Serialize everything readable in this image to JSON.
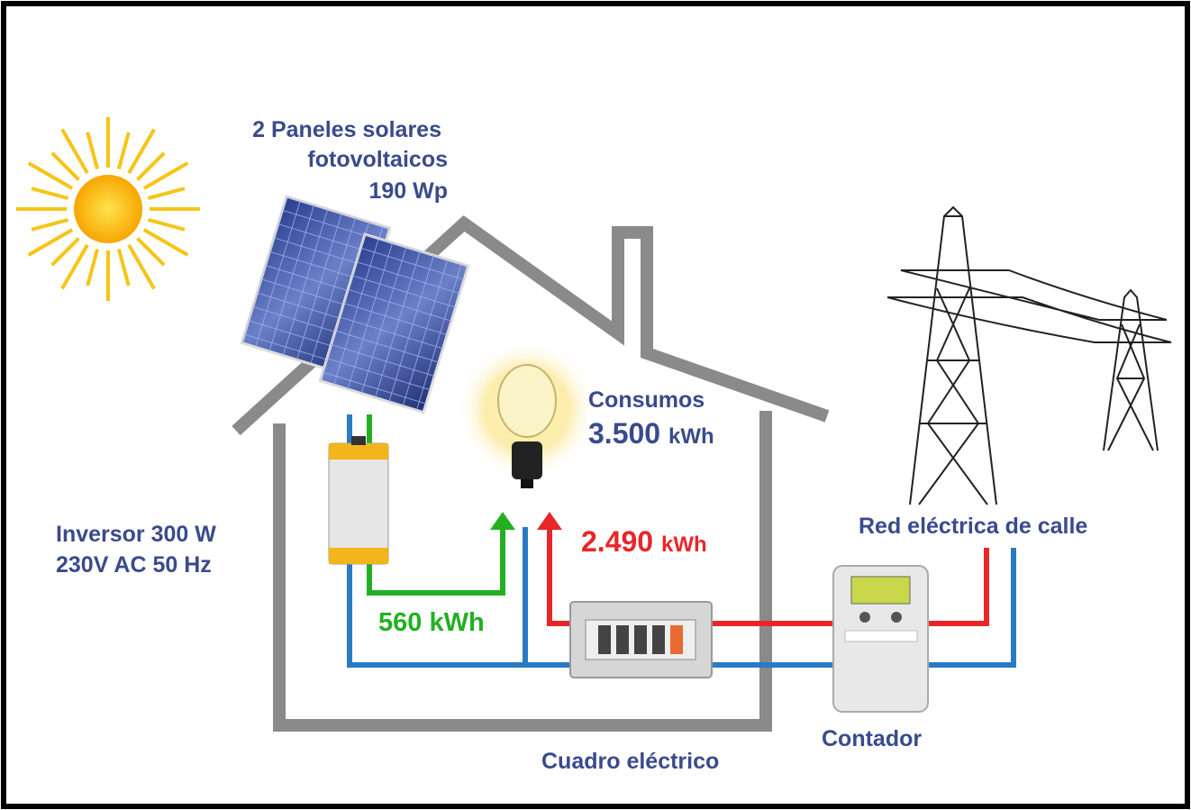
{
  "panels": {
    "lines": [
      "2 Paneles solares",
      "fotovoltaicos",
      "190 Wp"
    ]
  },
  "consumption": {
    "title": "Consumos",
    "amount": "3.500",
    "unit": "kWh"
  },
  "inverter": {
    "lines": [
      "Inversor 300 W",
      "230V AC 50 Hz"
    ]
  },
  "solar_energy": "560 kWh",
  "grid_energy": {
    "amount": "2.490",
    "unit": "kWh"
  },
  "grid": "Red eléctrica de calle",
  "meter": "Contador",
  "panel_board": "Cuadro eléctrico"
}
